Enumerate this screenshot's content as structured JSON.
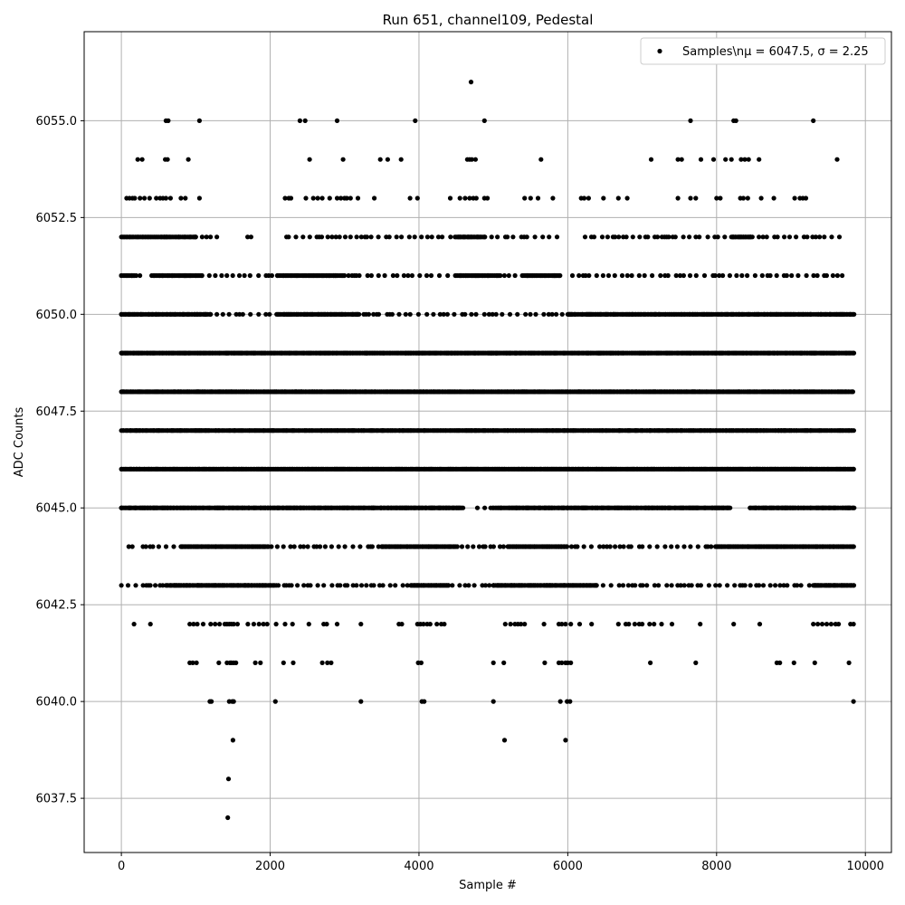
{
  "chart_data": {
    "type": "scatter",
    "title": "Run 651, channel109, Pedestal",
    "xlabel": "Sample #",
    "ylabel": "ADC Counts",
    "xlim": [
      -500,
      10350
    ],
    "ylim": [
      6036.1,
      6057.3
    ],
    "xticks": [
      0,
      2000,
      4000,
      6000,
      8000,
      10000
    ],
    "xtick_labels": [
      "0",
      "2000",
      "4000",
      "6000",
      "8000",
      "10000"
    ],
    "yticks": [
      6037.5,
      6040.0,
      6042.5,
      6045.0,
      6047.5,
      6050.0,
      6052.5,
      6055.0
    ],
    "ytick_labels": [
      "6037.5",
      "6040.0",
      "6042.5",
      "6045.0",
      "6047.5",
      "6050.0",
      "6052.5",
      "6055.0"
    ],
    "grid": true,
    "legend_position": "top-right",
    "marker_color": "#000000",
    "series": [
      {
        "name": "Samples\\nμ = 6047.5, σ = 2.25",
        "legend_label": "Samples\\nμ = 6047.5, σ = 2.25",
        "mean": 6047.5,
        "sigma": 2.25,
        "n_samples": 9850,
        "value_levels": [
          {
            "y": 6056,
            "x": [
              4700
            ]
          },
          {
            "y": 6055,
            "x": [
              600,
              630,
              1050,
              2400,
              2470,
              2900,
              3950,
              4880,
              7650,
              8230,
              8260,
              9300
            ]
          },
          {
            "y": 6054,
            "x": [
              220,
              280,
              590,
              620,
              900,
              2530,
              2980,
              3480,
              3580,
              3760,
              4650,
              4680,
              4710,
              4760,
              5640,
              7120,
              7480,
              7530,
              7790,
              7960,
              8120,
              8200,
              8330,
              8380,
              8430,
              8570,
              9620
            ]
          },
          {
            "y": 6053,
            "x": [
              70,
              110,
              150,
              180,
              250,
              310,
              380,
              470,
              520,
              560,
              600,
              660,
              800,
              860,
              1050,
              2200,
              2250,
              2280,
              2480,
              2580,
              2640,
              2700,
              2800,
              2900,
              2950,
              3000,
              3030,
              3080,
              3180,
              3400,
              3880,
              3980,
              4420,
              4550,
              4620,
              4680,
              4730,
              4770,
              4880,
              4920,
              5420,
              5500,
              5600,
              5800,
              6180,
              6220,
              6280,
              6480,
              6680,
              6800,
              7480,
              7650,
              7720,
              8000,
              8050,
              8320,
              8360,
              8420,
              8600,
              8770,
              9050,
              9120,
              9160,
              9200
            ]
          },
          {
            "y": 6052,
            "dense": [
              [
                0,
                1000
              ],
              [
                4500,
                4900
              ],
              [
                8200,
                8500
              ]
            ],
            "sparse": [
              [
                1000,
                9750
              ]
            ],
            "gaps": [
              [
                1300,
                1650
              ],
              [
                1750,
                2150
              ],
              [
                5950,
                6200
              ]
            ]
          },
          {
            "y": 6051,
            "dense": [
              [
                0,
                200
              ],
              [
                400,
                1100
              ],
              [
                2100,
                3000
              ],
              [
                4500,
                5100
              ],
              [
                5400,
                5900
              ]
            ],
            "sparse": [
              [
                0,
                9750
              ]
            ],
            "gaps": [
              [
                250,
                400
              ],
              [
                5900,
                6050
              ]
            ]
          },
          {
            "y": 6050,
            "dense": [
              [
                0,
                1200
              ],
              [
                2100,
                3200
              ],
              [
                6000,
                9850
              ]
            ],
            "sparse": [
              [
                0,
                9850
              ]
            ],
            "gaps": [
              [
                4000,
                4100
              ]
            ]
          },
          {
            "y": 6049,
            "dense": [
              [
                0,
                9850
              ]
            ]
          },
          {
            "y": 6048,
            "dense": [
              [
                0,
                9850
              ]
            ]
          },
          {
            "y": 6047,
            "dense": [
              [
                0,
                9850
              ]
            ]
          },
          {
            "y": 6046,
            "dense": [
              [
                0,
                9850
              ]
            ]
          },
          {
            "y": 6045,
            "dense": [
              [
                0,
                4600
              ],
              [
                5000,
                8200
              ],
              [
                8450,
                9850
              ]
            ],
            "sparse": [
              [
                0,
                9850
              ]
            ],
            "gaps": [
              [
                4600,
                4750
              ],
              [
                8250,
                8400
              ]
            ]
          },
          {
            "y": 6044,
            "dense": [
              [
                800,
                2000
              ],
              [
                3500,
                4500
              ],
              [
                5200,
                6000
              ],
              [
                8000,
                9850
              ]
            ],
            "sparse": [
              [
                100,
                9850
              ]
            ],
            "gaps": [
              [
                170,
                270
              ]
            ]
          },
          {
            "y": 6043,
            "dense": [
              [
                600,
                2100
              ],
              [
                3900,
                4400
              ],
              [
                5000,
                6400
              ],
              [
                9300,
                9850
              ]
            ],
            "sparse": [
              [
                0,
                9850
              ]
            ]
          },
          {
            "y": 6042,
            "x": [
              170,
              390,
              920,
              970,
              1020,
              1100,
              1200,
              1260,
              1320,
              1390,
              1420,
              1450,
              1480,
              1510,
              1560,
              1700,
              1780,
              1850,
              1910,
              1960,
              2080,
              2200,
              2300,
              2520,
              2720,
              2760,
              2900,
              3220,
              3730,
              3770,
              3980,
              4020,
              4060,
              4110,
              4150,
              4240,
              4300,
              4340,
              5160,
              5230,
              5290,
              5330,
              5370,
              5420,
              5680,
              5880,
              5920,
              5970,
              6040,
              6160,
              6320,
              6680,
              6780,
              6820,
              6900,
              6960,
              7000,
              7100,
              7160,
              7260,
              7400,
              7780,
              8230,
              8580,
              9300,
              9360,
              9420,
              9480,
              9540,
              9600,
              9640,
              9800,
              9840
            ]
          },
          {
            "y": 6041,
            "x": [
              920,
              960,
              1010,
              1310,
              1420,
              1460,
              1480,
              1510,
              1540,
              1800,
              1870,
              2180,
              2310,
              2700,
              2770,
              2820,
              3990,
              4030,
              5000,
              5140,
              5690,
              5880,
              5920,
              5970,
              6000,
              6040,
              7110,
              7720,
              8810,
              8850,
              9040,
              9320,
              9780
            ]
          },
          {
            "y": 6040,
            "x": [
              1190,
              1210,
              1450,
              1490,
              1510,
              2070,
              3220,
              4040,
              4070,
              5000,
              5900,
              5990,
              6030,
              9840
            ]
          },
          {
            "y": 6039,
            "x": [
              1500,
              5150,
              5970
            ]
          },
          {
            "y": 6038,
            "x": [
              1440
            ]
          },
          {
            "y": 6037,
            "x": [
              1430
            ]
          }
        ]
      }
    ]
  }
}
